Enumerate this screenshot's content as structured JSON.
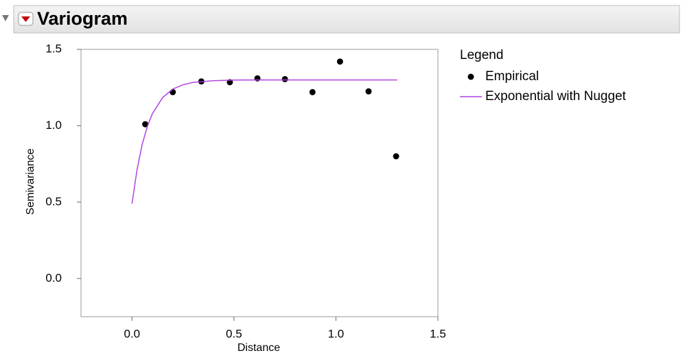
{
  "chart_data": {
    "type": "scatter",
    "title": "Variogram",
    "x_label": "Distance",
    "y_label": "Semivariance",
    "legend_title": "Legend",
    "legend_position": "right",
    "xlim": [
      -0.25,
      1.5
    ],
    "ylim": [
      -0.25,
      1.5
    ],
    "xticks": [
      {
        "value": 0,
        "label": "0.0"
      },
      0.5,
      {
        "value": 1,
        "label": "1.0"
      },
      1.5
    ],
    "yticks": [
      {
        "value": 0,
        "label": "0.0"
      },
      0.5,
      {
        "value": 1,
        "label": "1.0"
      },
      1.5
    ],
    "series": [
      {
        "name": "Empirical",
        "type": "scatter",
        "color": "#000000",
        "x": [
          0.065,
          0.2,
          0.34,
          0.48,
          0.615,
          0.75,
          0.885,
          1.02,
          1.16,
          1.295
        ],
        "values": [
          1.01,
          1.22,
          1.29,
          1.285,
          1.31,
          1.305,
          1.22,
          1.42,
          1.225,
          0.8
        ]
      },
      {
        "name": "Exponential with Nugget",
        "type": "line",
        "color": "#b042e0",
        "x": [
          0,
          0.025,
          0.05,
          0.075,
          0.1,
          0.15,
          0.2,
          0.25,
          0.3,
          0.4,
          0.5,
          0.7,
          1.0,
          1.3
        ],
        "values": [
          0.49,
          0.714,
          0.877,
          0.994,
          1.079,
          1.184,
          1.24,
          1.268,
          1.284,
          1.295,
          1.299,
          1.3,
          1.3,
          1.3
        ]
      }
    ]
  }
}
